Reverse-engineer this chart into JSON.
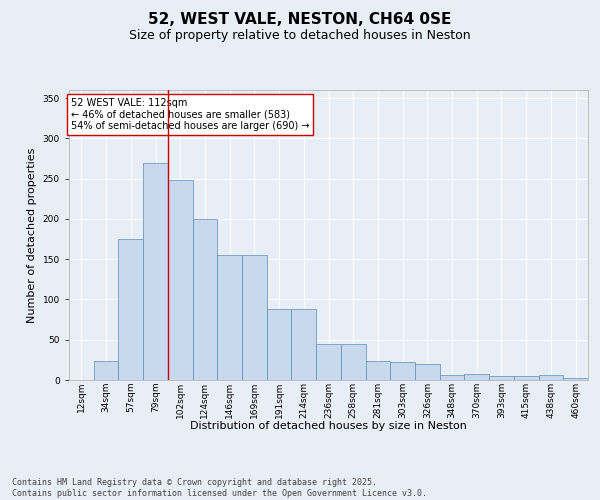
{
  "title": "52, WEST VALE, NESTON, CH64 0SE",
  "subtitle": "Size of property relative to detached houses in Neston",
  "xlabel": "Distribution of detached houses by size in Neston",
  "ylabel": "Number of detached properties",
  "categories": [
    "12sqm",
    "34sqm",
    "57sqm",
    "79sqm",
    "102sqm",
    "124sqm",
    "146sqm",
    "169sqm",
    "191sqm",
    "214sqm",
    "236sqm",
    "258sqm",
    "281sqm",
    "303sqm",
    "326sqm",
    "348sqm",
    "370sqm",
    "393sqm",
    "415sqm",
    "438sqm",
    "460sqm"
  ],
  "bar_values": [
    0,
    23,
    175,
    270,
    248,
    200,
    155,
    155,
    88,
    88,
    45,
    45,
    23,
    22,
    20,
    6,
    8,
    5,
    5,
    6,
    2
  ],
  "bar_color": "#c8d9ed",
  "bar_edge_color": "#5b8db8",
  "vline_x_idx": 4,
  "vline_color": "#cc0000",
  "annotation_text": "52 WEST VALE: 112sqm\n← 46% of detached houses are smaller (583)\n54% of semi-detached houses are larger (690) →",
  "annotation_box_facecolor": "#ffffff",
  "annotation_box_edgecolor": "#cc0000",
  "ylim": [
    0,
    360
  ],
  "yticks": [
    0,
    50,
    100,
    150,
    200,
    250,
    300,
    350
  ],
  "background_color": "#e8eef6",
  "plot_background": "#e8eef6",
  "footer_text": "Contains HM Land Registry data © Crown copyright and database right 2025.\nContains public sector information licensed under the Open Government Licence v3.0.",
  "title_fontsize": 11,
  "subtitle_fontsize": 9,
  "xlabel_fontsize": 8,
  "ylabel_fontsize": 8,
  "tick_fontsize": 6.5,
  "footer_fontsize": 6,
  "annotation_fontsize": 7
}
